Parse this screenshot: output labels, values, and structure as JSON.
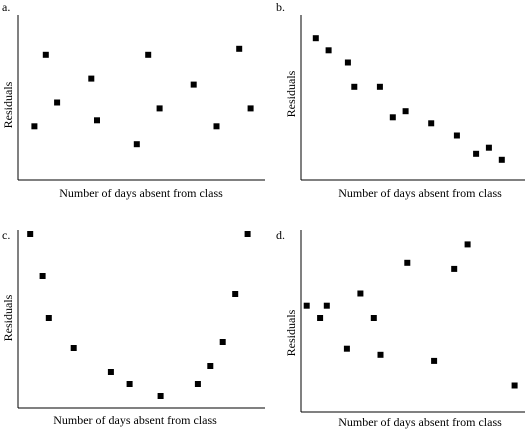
{
  "chart_data": [
    {
      "panel": "a.",
      "type": "scatter",
      "xlabel": "Number of days absent from class",
      "ylabel": "Residuals",
      "points": [
        {
          "x": 1,
          "y": 3.5
        },
        {
          "x": 2,
          "y": 9.5
        },
        {
          "x": 3,
          "y": 5.5
        },
        {
          "x": 6,
          "y": 7.5
        },
        {
          "x": 6.5,
          "y": 4.0
        },
        {
          "x": 10,
          "y": 2.0
        },
        {
          "x": 11,
          "y": 9.5
        },
        {
          "x": 12,
          "y": 5.0
        },
        {
          "x": 15,
          "y": 7.0
        },
        {
          "x": 17,
          "y": 3.5
        },
        {
          "x": 19,
          "y": 10.0
        },
        {
          "x": 20,
          "y": 5.0
        }
      ],
      "xlim": [
        0,
        21
      ],
      "ylim": [
        0,
        12
      ]
    },
    {
      "panel": "b.",
      "type": "scatter",
      "xlabel": "Number of days absent from class",
      "ylabel": "Residuals",
      "points": [
        {
          "x": 1,
          "y": 11.0
        },
        {
          "x": 2,
          "y": 10.0
        },
        {
          "x": 3.5,
          "y": 9.0
        },
        {
          "x": 4,
          "y": 7.0
        },
        {
          "x": 6,
          "y": 7.0
        },
        {
          "x": 7,
          "y": 4.5
        },
        {
          "x": 8,
          "y": 5.0
        },
        {
          "x": 10,
          "y": 4.0
        },
        {
          "x": 12,
          "y": 3.0
        },
        {
          "x": 13.5,
          "y": 1.5
        },
        {
          "x": 14.5,
          "y": 2.0
        },
        {
          "x": 15.5,
          "y": 1.0
        }
      ],
      "xlim": [
        0,
        17
      ],
      "ylim": [
        0,
        12
      ]
    },
    {
      "panel": "c.",
      "type": "scatter",
      "xlabel": "Number of days absent from class",
      "ylabel": "Residuals",
      "points": [
        {
          "x": 0.5,
          "y": 13.5
        },
        {
          "x": 1.5,
          "y": 10.0
        },
        {
          "x": 2,
          "y": 6.5
        },
        {
          "x": 4,
          "y": 4.0
        },
        {
          "x": 7,
          "y": 2.0
        },
        {
          "x": 8.5,
          "y": 1.0
        },
        {
          "x": 11,
          "y": 0.0
        },
        {
          "x": 14,
          "y": 1.0
        },
        {
          "x": 15,
          "y": 2.5
        },
        {
          "x": 16,
          "y": 4.5
        },
        {
          "x": 17,
          "y": 8.5
        },
        {
          "x": 18,
          "y": 13.5
        }
      ],
      "xlim": [
        0,
        19
      ],
      "ylim": [
        -1,
        14
      ]
    },
    {
      "panel": "d.",
      "type": "scatter",
      "xlabel": "Number of days absent from class",
      "ylabel": "Residuals",
      "points": [
        {
          "x": 0.5,
          "y": 8.5
        },
        {
          "x": 1.5,
          "y": 7.5
        },
        {
          "x": 2,
          "y": 8.5
        },
        {
          "x": 3.5,
          "y": 5.0
        },
        {
          "x": 4.5,
          "y": 9.5
        },
        {
          "x": 5.5,
          "y": 7.5
        },
        {
          "x": 6,
          "y": 4.5
        },
        {
          "x": 8,
          "y": 12.0
        },
        {
          "x": 10,
          "y": 4.0
        },
        {
          "x": 11.5,
          "y": 11.5
        },
        {
          "x": 12.5,
          "y": 13.5
        },
        {
          "x": 16,
          "y": 2.0
        }
      ],
      "xlim": [
        0,
        17
      ],
      "ylim": [
        0,
        15
      ]
    }
  ]
}
